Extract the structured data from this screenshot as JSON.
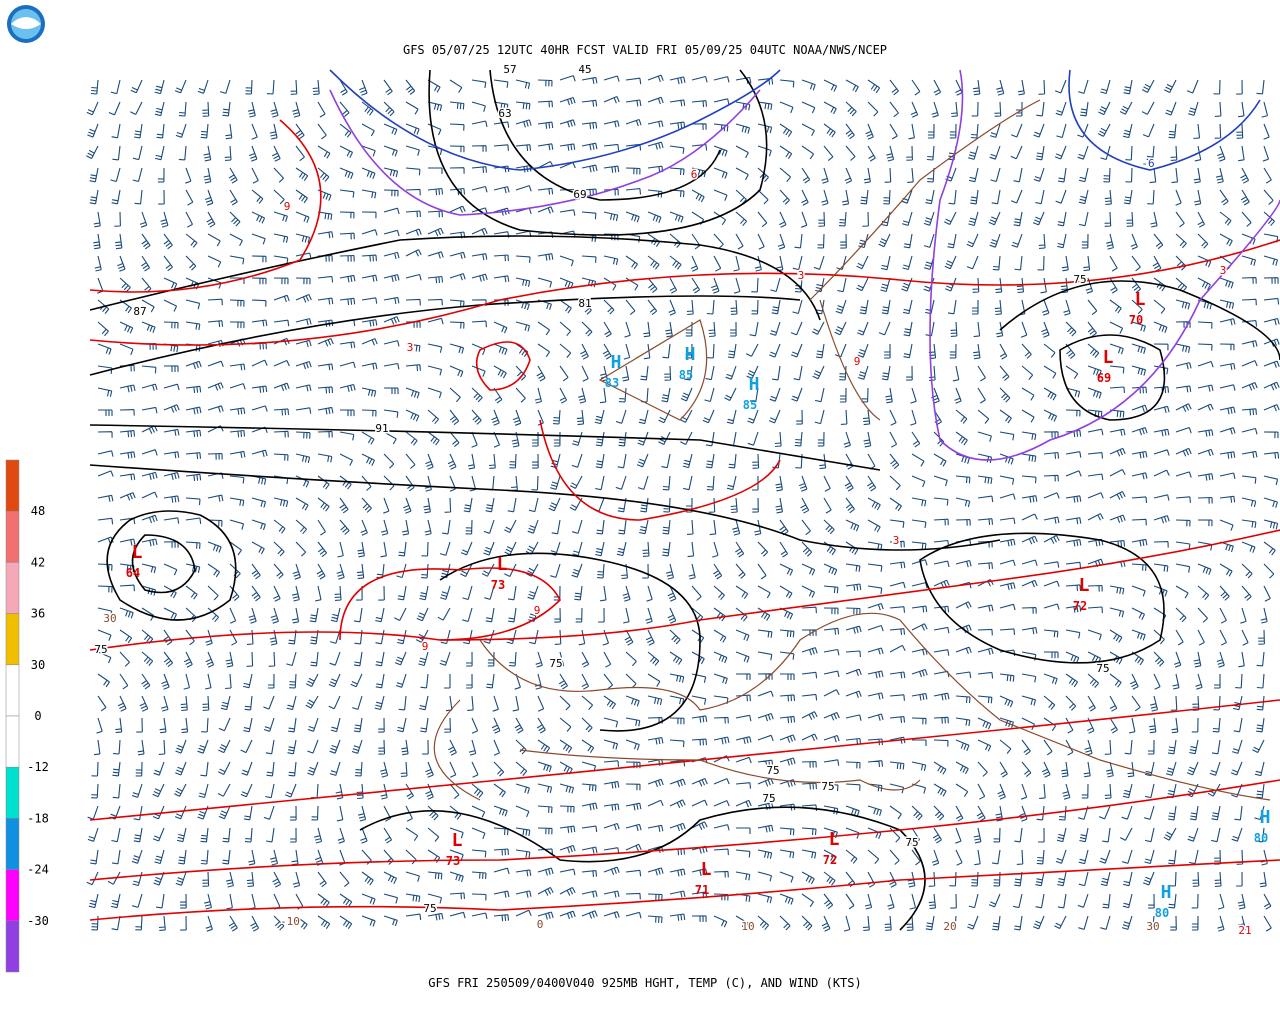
{
  "header": {
    "title": "GFS 05/07/25 12UTC 40HR FCST VALID FRI 05/09/25 04UTC NOAA/NWS/NCEP"
  },
  "footer": {
    "caption": "GFS FRI 250509/0400V040 925MB HGHT, TEMP (C), AND WIND (KTS)"
  },
  "colorbar": {
    "colors": [
      "#e04a10",
      "#f07070",
      "#f4a8b8",
      "#f0c000",
      "#ffffff",
      "#ffffff",
      "#00e0d0",
      "#1090e0",
      "#ff00ff",
      "#9040e0"
    ],
    "labels": [
      "48",
      "42",
      "36",
      "30",
      "0",
      "-12",
      "-18",
      "-24",
      "-30"
    ]
  },
  "centers": [
    {
      "letter": "L",
      "value": "64",
      "color": "#e00000"
    },
    {
      "letter": "L",
      "value": "73",
      "color": "#e00000"
    },
    {
      "letter": "H",
      "value": "83",
      "color": "#10a0e0"
    },
    {
      "letter": "H",
      "value": "85",
      "color": "#10a0e0"
    },
    {
      "letter": "H",
      "value": "85",
      "color": "#10a0e0"
    },
    {
      "letter": "L",
      "value": "70",
      "color": "#e00000"
    },
    {
      "letter": "L",
      "value": "69",
      "color": "#e00000"
    },
    {
      "letter": "L",
      "value": "72",
      "color": "#e00000"
    },
    {
      "letter": "L",
      "value": "73",
      "color": "#e00000"
    },
    {
      "letter": "L",
      "value": "71",
      "color": "#e00000"
    },
    {
      "letter": "L",
      "value": "72",
      "color": "#e00000"
    },
    {
      "letter": "H",
      "value": "80",
      "color": "#10a0e0"
    },
    {
      "letter": "H",
      "value": "80",
      "color": "#10a0e0"
    }
  ],
  "contour_labels": [
    {
      "text": "87",
      "color": "#000000"
    },
    {
      "text": "81",
      "color": "#000000"
    },
    {
      "text": "91",
      "color": "#000000"
    },
    {
      "text": "75",
      "color": "#000000"
    },
    {
      "text": "69",
      "color": "#000000"
    },
    {
      "text": "63",
      "color": "#000000"
    },
    {
      "text": "57",
      "color": "#000000"
    },
    {
      "text": "45",
      "color": "#000000"
    },
    {
      "text": "75",
      "color": "#000000"
    },
    {
      "text": "75",
      "color": "#000000"
    },
    {
      "text": "75",
      "color": "#000000"
    },
    {
      "text": "75",
      "color": "#000000"
    },
    {
      "text": "75",
      "color": "#000000"
    },
    {
      "text": "75",
      "color": "#000000"
    },
    {
      "text": "75",
      "color": "#000000"
    },
    {
      "text": "75",
      "color": "#000000"
    },
    {
      "text": "9",
      "color": "#e00000"
    },
    {
      "text": "3",
      "color": "#e00000"
    },
    {
      "text": "3",
      "color": "#e00000"
    },
    {
      "text": "9",
      "color": "#e00000"
    },
    {
      "text": "3",
      "color": "#e00000"
    },
    {
      "text": "9",
      "color": "#e00000"
    },
    {
      "text": "9",
      "color": "#e00000"
    },
    {
      "text": "3",
      "color": "#e00000"
    },
    {
      "text": "6",
      "color": "#e00000"
    },
    {
      "text": "-6",
      "color": "#2040c0"
    },
    {
      "text": "30",
      "color": "#8b4a2a"
    },
    {
      "text": "-10",
      "color": "#8b4a2a"
    },
    {
      "text": "0",
      "color": "#8b4a2a"
    },
    {
      "text": "10",
      "color": "#8b4a2a"
    },
    {
      "text": "20",
      "color": "#8b4a2a"
    },
    {
      "text": "30",
      "color": "#8b4a2a"
    },
    {
      "text": "21",
      "color": "#e00000"
    }
  ]
}
